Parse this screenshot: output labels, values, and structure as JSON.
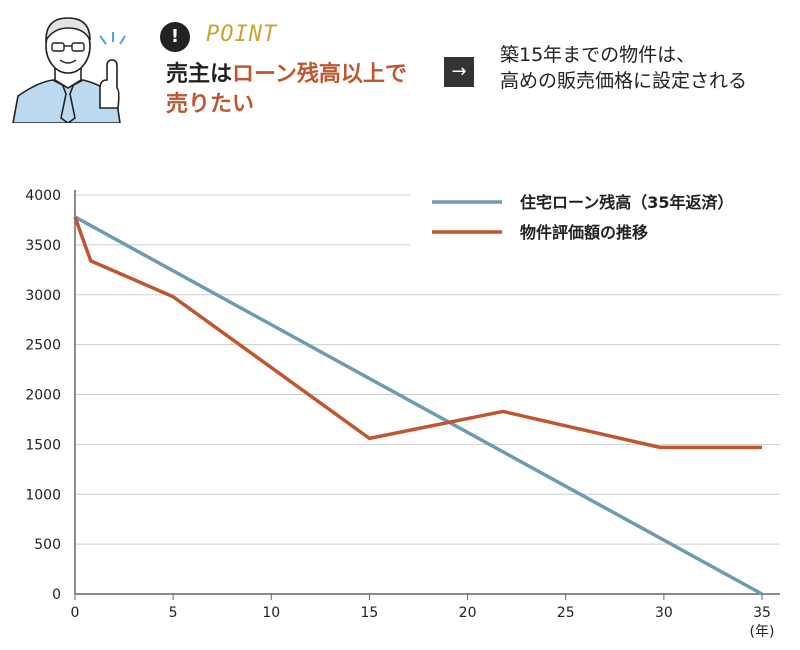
{
  "header": {
    "point_label": "POINT",
    "point_icon": "exclamation-icon",
    "headline_part1": "売主は",
    "headline_accent": "ローン残高以上で",
    "headline_part2": "売りたい",
    "arrow_icon": "arrow-right-icon",
    "conclusion_line1": "築15年までの物件は、",
    "conclusion_line2": "高めの販売価格に設定される",
    "accent_color": "#c0562f",
    "point_color": "#c9a43a"
  },
  "chart_data": {
    "type": "line",
    "x_unit_label": "(年)",
    "xlim": [
      0,
      35
    ],
    "ylim": [
      0,
      4000
    ],
    "x_ticks": [
      "0",
      "5",
      "10",
      "15",
      "20",
      "25",
      "30",
      "35"
    ],
    "y_ticks": [
      "0",
      "500",
      "1000",
      "1500",
      "2000",
      "2500",
      "3000",
      "3500",
      "4000"
    ],
    "grid": "horizontal",
    "legend_position": "top-right",
    "series": [
      {
        "name": "住宅ローン残高（35年返済）",
        "color": "#6e9bb0",
        "points": [
          [
            0,
            3780
          ],
          [
            35,
            0
          ]
        ]
      },
      {
        "name": "物件評価額の推移",
        "color": "#c0562f",
        "points": [
          [
            0,
            3780
          ],
          [
            0.8,
            3340
          ],
          [
            5,
            2980
          ],
          [
            15,
            1560
          ],
          [
            21.8,
            1830
          ],
          [
            29.8,
            1470
          ],
          [
            35,
            1470
          ]
        ]
      }
    ]
  }
}
